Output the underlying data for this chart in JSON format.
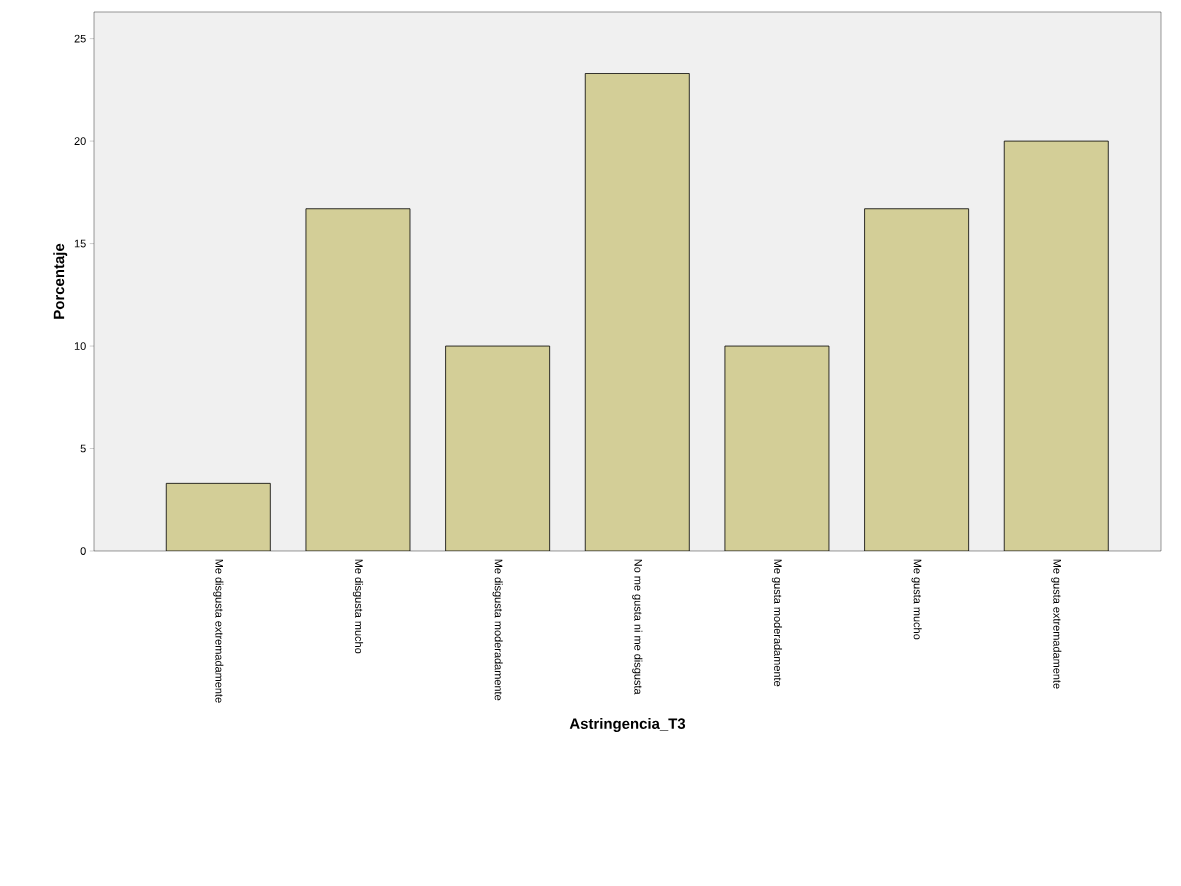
{
  "chart_data": {
    "type": "bar",
    "xlabel": "Astringencia_T3",
    "ylabel": "Porcentaje",
    "categories": [
      "Me disgusta extremadamente",
      "Me disgusta mucho",
      "Me disgusta moderadamente",
      "No me gusta ni me disgusta",
      "Me gusta moderadamente",
      "Me gusta mucho",
      "Me gusta extremadamente"
    ],
    "values": [
      3.3,
      16.7,
      10,
      23.3,
      10,
      16.7,
      20
    ],
    "color": "#d3ce97",
    "ylim": [
      0,
      26.3
    ],
    "yticks": [
      0,
      5,
      10,
      15,
      20,
      25
    ],
    "grid": false
  }
}
